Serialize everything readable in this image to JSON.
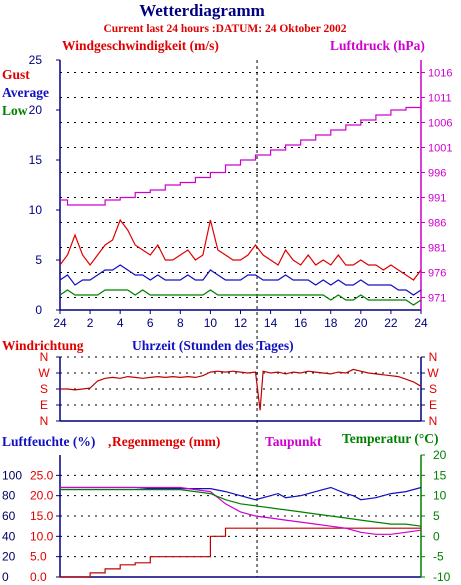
{
  "header": {
    "title": "Wetterdiagramm",
    "subtitle": "Current last 24 hours :DATUM: 24 Oktober 2002"
  },
  "colors": {
    "axis": "#000080",
    "gust": "#e00000",
    "average": "#1010c0",
    "low": "#008000",
    "pressure": "#d000d0",
    "direction": "#c00000",
    "humidity": "#1010c0",
    "rain": "#c00000",
    "dewpoint": "#d000d0",
    "temperature": "#008000"
  },
  "chart_data": [
    {
      "type": "line",
      "panel": "wind",
      "ylabel_left": "Windgeschwindigkeit (m/s)",
      "ylabel_right": "Luftdruck (hPa)",
      "xlabel": "Uhrzeit (Stunden des Tages)",
      "legend": [
        "Gust",
        "Average",
        "Low"
      ],
      "xlim": [
        0,
        24
      ],
      "x_ticks": [
        "24",
        "2",
        "4",
        "6",
        "8",
        "10",
        "12",
        "14",
        "16",
        "18",
        "20",
        "22",
        "24"
      ],
      "ylim_left": [
        0,
        25
      ],
      "y_ticks_left": [
        "0",
        "5",
        "10",
        "15",
        "20",
        "25"
      ],
      "ylim_right": [
        968.5,
        1018.5
      ],
      "y_ticks_right": [
        "971",
        "976",
        "981",
        "986",
        "991",
        "996",
        "1001",
        "1006",
        "1011",
        "1016"
      ],
      "marker_hour": 13.1,
      "series": [
        {
          "name": "Gust",
          "x": [
            0,
            0.5,
            1,
            1.5,
            2,
            2.5,
            3,
            3.5,
            4,
            4.5,
            5,
            5.5,
            6,
            6.5,
            7,
            7.5,
            8,
            8.5,
            9,
            9.5,
            10,
            10.5,
            11,
            11.5,
            12,
            12.5,
            13,
            13.5,
            14,
            14.5,
            15,
            15.5,
            16,
            16.5,
            17,
            17.5,
            18,
            18.5,
            19,
            19.5,
            20,
            20.5,
            21,
            21.5,
            22,
            22.5,
            23,
            23.5,
            24
          ],
          "values": [
            4.5,
            5.5,
            7.5,
            5.5,
            4.5,
            5.5,
            6.5,
            7,
            9,
            8,
            6.5,
            6,
            5.5,
            6.5,
            5,
            5,
            5.5,
            6,
            5,
            5.5,
            9,
            6,
            5.5,
            5,
            5,
            5.5,
            6.5,
            5.5,
            5,
            4.5,
            6,
            5,
            4.5,
            5.5,
            4.5,
            5,
            4.5,
            5.5,
            4.5,
            4.5,
            5,
            4.5,
            4.5,
            4,
            4.5,
            4,
            3.5,
            3,
            4
          ]
        },
        {
          "name": "Average",
          "x": [
            0,
            0.5,
            1,
            1.5,
            2,
            2.5,
            3,
            3.5,
            4,
            4.5,
            5,
            5.5,
            6,
            6.5,
            7,
            7.5,
            8,
            8.5,
            9,
            9.5,
            10,
            10.5,
            11,
            11.5,
            12,
            12.5,
            13,
            13.5,
            14,
            14.5,
            15,
            15.5,
            16,
            16.5,
            17,
            17.5,
            18,
            18.5,
            19,
            19.5,
            20,
            20.5,
            21,
            21.5,
            22,
            22.5,
            23,
            23.5,
            24
          ],
          "values": [
            3,
            3.5,
            2.5,
            3,
            3,
            3.5,
            4,
            4,
            4.5,
            4,
            3.5,
            3.5,
            3,
            3.5,
            3,
            3,
            3,
            3.5,
            3,
            3,
            4,
            3.5,
            3,
            3,
            3,
            3.5,
            3.5,
            3,
            3,
            3,
            3.5,
            3,
            3,
            3,
            2.5,
            3,
            2.5,
            3,
            2.5,
            2.5,
            3,
            2.5,
            2.5,
            2.5,
            2.5,
            2,
            2,
            1.5,
            2
          ]
        },
        {
          "name": "Low",
          "x": [
            0,
            0.5,
            1,
            1.5,
            2,
            2.5,
            3,
            3.5,
            4,
            4.5,
            5,
            5.5,
            6,
            6.5,
            7,
            7.5,
            8,
            8.5,
            9,
            9.5,
            10,
            10.5,
            11,
            11.5,
            12,
            12.5,
            13,
            13.5,
            14,
            14.5,
            15,
            15.5,
            16,
            16.5,
            17,
            17.5,
            18,
            18.5,
            19,
            19.5,
            20,
            20.5,
            21,
            21.5,
            22,
            22.5,
            23,
            23.5,
            24
          ],
          "values": [
            1.5,
            2,
            1.5,
            1.5,
            1.5,
            1.5,
            2,
            2,
            2,
            2,
            1.5,
            2,
            1.5,
            1.5,
            1.5,
            1.5,
            1.5,
            1.5,
            1.5,
            1.5,
            2,
            1.5,
            1.5,
            1.5,
            1.5,
            1.5,
            1.5,
            1.5,
            1.5,
            1.5,
            1.5,
            1.5,
            1.5,
            1.5,
            1.5,
            1.5,
            1,
            1.5,
            1,
            1,
            1.5,
            1,
            1,
            1,
            1,
            1,
            1,
            0.5,
            1
          ]
        },
        {
          "name": "Luftdruck",
          "x": [
            0,
            0.5,
            1,
            2,
            3,
            4,
            5,
            6,
            7,
            8,
            9,
            10,
            11,
            12,
            13,
            14,
            15,
            16,
            17,
            18,
            19,
            20,
            21,
            22,
            23,
            24
          ],
          "values": [
            990.5,
            989.5,
            989.5,
            989.5,
            990.5,
            991,
            992,
            992.5,
            993.5,
            994,
            995,
            996,
            997.5,
            998.5,
            999.5,
            1000.5,
            1001.5,
            1002.5,
            1003.5,
            1004.5,
            1005.5,
            1006.5,
            1007.5,
            1008.5,
            1009,
            1010
          ]
        }
      ]
    },
    {
      "type": "line",
      "panel": "direction",
      "ylabel": "Windrichtung",
      "xlim": [
        0,
        24
      ],
      "y_ticks": [
        "N",
        "W",
        "S",
        "E",
        "N"
      ],
      "ylim": [
        0,
        360
      ],
      "y_ticks_values": [
        360,
        270,
        180,
        90,
        0
      ],
      "series": [
        {
          "name": "Windrichtung",
          "x": [
            0,
            0.5,
            1,
            1.5,
            2,
            2.5,
            3,
            3.5,
            4,
            4.5,
            5,
            5.5,
            6,
            6.5,
            7,
            7.5,
            8,
            8.5,
            9,
            9.5,
            10,
            10.5,
            11,
            11.5,
            12,
            12.5,
            13,
            13.3,
            13.5,
            14,
            14.5,
            15,
            15.5,
            16,
            16.5,
            17,
            17.5,
            18,
            18.5,
            19,
            19.5,
            20,
            20.5,
            21,
            21.5,
            22,
            22.5,
            23,
            23.5,
            24
          ],
          "values": [
            180,
            180,
            175,
            180,
            185,
            225,
            240,
            245,
            240,
            250,
            245,
            240,
            245,
            250,
            245,
            250,
            245,
            250,
            245,
            255,
            275,
            280,
            275,
            280,
            275,
            270,
            275,
            60,
            280,
            270,
            275,
            265,
            275,
            270,
            280,
            275,
            270,
            265,
            275,
            270,
            290,
            280,
            270,
            265,
            260,
            255,
            250,
            235,
            220,
            195
          ]
        }
      ]
    },
    {
      "type": "line",
      "panel": "humidity",
      "ylabel_left": "Luftfeuchte (%)",
      "ylabel_left2": "Regenmenge (mm)",
      "ylabel_right": "Temperatur (°C)",
      "ylabel_right2": "Taupunkt",
      "xlim": [
        0,
        24
      ],
      "ylim_humidity": [
        0,
        120
      ],
      "y_ticks_humidity": [
        "0",
        "20",
        "40",
        "60",
        "80",
        "100"
      ],
      "ylim_rain": [
        0,
        30
      ],
      "y_ticks_rain": [
        "0.0",
        "5.0",
        "10.0",
        "15.0",
        "20.0",
        "25.0"
      ],
      "ylim_temp": [
        -10,
        20
      ],
      "y_ticks_temp": [
        "-10",
        "-5",
        "0",
        "5",
        "10",
        "15",
        "20"
      ],
      "series": [
        {
          "name": "Luftfeuchte",
          "axis": "humidity",
          "x": [
            0,
            1,
            2,
            3,
            4,
            5,
            6,
            7,
            8,
            9,
            10,
            11,
            12,
            13,
            14,
            14.5,
            15,
            16,
            17,
            18,
            19,
            19.5,
            20,
            21,
            22,
            23,
            24
          ],
          "values": [
            88,
            88,
            88,
            88,
            88,
            88,
            87,
            87,
            87,
            87,
            87,
            84,
            80,
            76,
            80,
            82,
            78,
            80,
            84,
            88,
            82,
            80,
            76,
            78,
            82,
            84,
            88
          ]
        },
        {
          "name": "Regenmenge",
          "axis": "rain",
          "x": [
            0,
            1,
            2,
            3,
            4,
            5,
            6,
            7,
            8,
            9,
            10,
            11,
            12,
            13,
            14,
            15,
            16,
            17,
            18,
            19,
            20,
            21,
            22,
            23,
            24
          ],
          "values": [
            0,
            0,
            1,
            2,
            3,
            3.5,
            5,
            5,
            5,
            5,
            10,
            12,
            12,
            12,
            12,
            12,
            12,
            12,
            12,
            12,
            12,
            12,
            12,
            12,
            12
          ]
        },
        {
          "name": "Taupunkt",
          "axis": "temp",
          "x": [
            0,
            1,
            2,
            3,
            4,
            5,
            6,
            7,
            8,
            9,
            10,
            11,
            12,
            13,
            14,
            15,
            16,
            17,
            18,
            19,
            20,
            21,
            22,
            23,
            24
          ],
          "values": [
            12,
            12,
            12,
            12,
            12,
            12,
            12,
            12,
            12,
            11.5,
            11,
            8,
            6,
            5,
            4.5,
            4,
            3.5,
            3,
            2.5,
            2,
            1,
            0.5,
            0.5,
            1,
            1.5
          ]
        },
        {
          "name": "Temperatur",
          "axis": "temp",
          "x": [
            0,
            1,
            2,
            3,
            4,
            5,
            6,
            7,
            8,
            9,
            10,
            11,
            12,
            13,
            14,
            15,
            16,
            17,
            18,
            19,
            20,
            21,
            22,
            23,
            24
          ],
          "values": [
            11.5,
            11.5,
            11.5,
            11.5,
            11.5,
            11.5,
            11.5,
            11.5,
            11.5,
            11,
            10.5,
            9,
            8,
            7.5,
            7,
            6.5,
            6,
            5.5,
            5,
            4.5,
            4,
            3.5,
            3,
            3,
            2.5
          ]
        }
      ]
    }
  ]
}
